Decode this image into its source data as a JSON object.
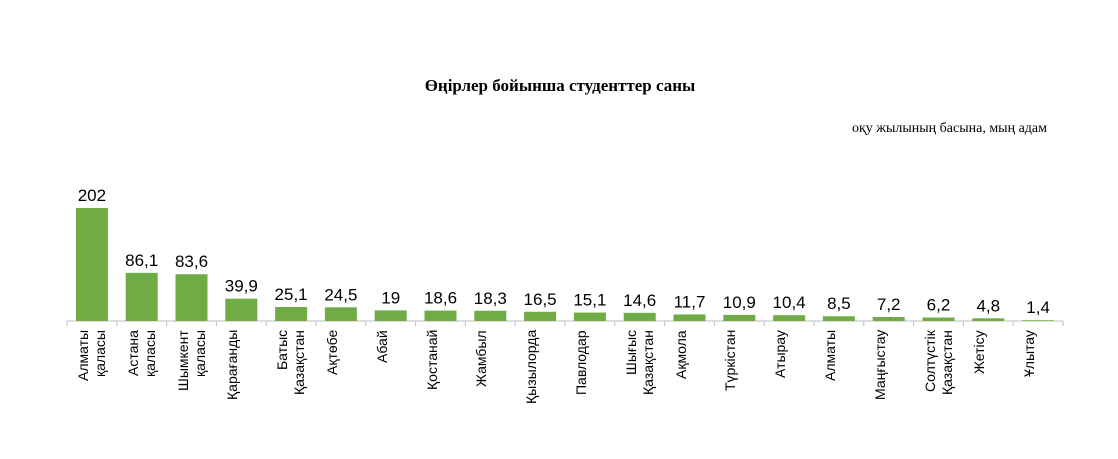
{
  "chart_data": {
    "type": "bar",
    "title": "Өңірлер  бойынша  студенттер  саны",
    "subtitle": "оқу жылының басына, мың адам",
    "categories": [
      "Алматы қаласы",
      "Астана қаласы",
      "Шымкент қаласы",
      "Қарағанды",
      "Батыс Қазақстан",
      "Ақтөбе",
      "Абай",
      "Қостанай",
      "Жамбыл",
      "Қызылорда",
      "Павлодар",
      "Шығыс Қазақстан",
      "Ақмола",
      "Түркістан",
      "Атырау",
      "Алматы",
      "Маңғыстау",
      "Солтүстік Қазақстан",
      "Жетісу",
      "Ұлытау"
    ],
    "values": [
      202,
      86.1,
      83.6,
      39.9,
      25.1,
      24.5,
      19,
      18.6,
      18.3,
      16.5,
      15.1,
      14.6,
      11.7,
      10.9,
      10.4,
      8.5,
      7.2,
      6.2,
      4.8,
      1.4
    ],
    "value_labels": [
      "202",
      "86,1",
      "83,6",
      "39,9",
      "25,1",
      "24,5",
      "19",
      "18,6",
      "18,3",
      "16,5",
      "15,1",
      "14,6",
      "11,7",
      "10,9",
      "10,4",
      "8,5",
      "7,2",
      "6,2",
      "4,8",
      "1,4"
    ],
    "color": "#6fac46"
  }
}
